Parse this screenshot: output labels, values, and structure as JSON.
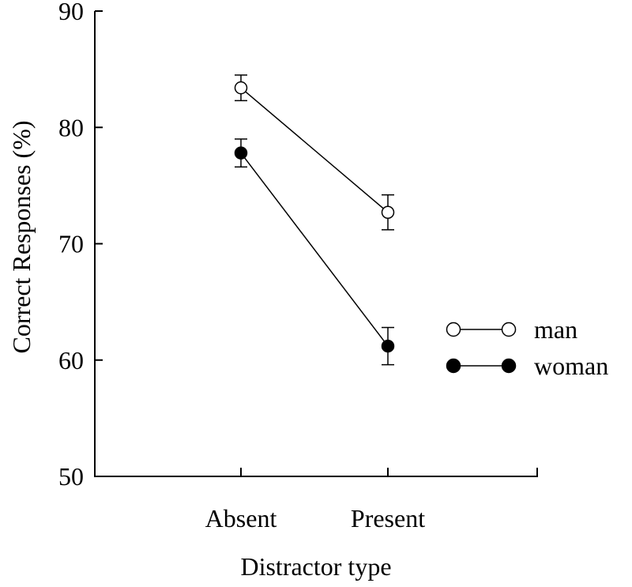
{
  "chart_data": {
    "type": "line",
    "categories": [
      "Absent",
      "Present"
    ],
    "xlabel": "Distractor type",
    "ylabel": "Correct Responses (%)",
    "ylim": [
      50,
      90
    ],
    "yticks": [
      "50",
      "60",
      "70",
      "80",
      "90"
    ],
    "grid": false,
    "legend_position": "right",
    "series": [
      {
        "name": "man",
        "values": [
          83.4,
          72.7
        ],
        "errors": [
          1.1,
          1.5
        ],
        "marker": "open-circle",
        "marker_fill": "#ffffff"
      },
      {
        "name": "woman",
        "values": [
          77.8,
          61.2
        ],
        "errors": [
          1.2,
          1.6
        ],
        "marker": "filled-circle",
        "marker_fill": "#000000"
      }
    ],
    "line_color": "#000000"
  }
}
